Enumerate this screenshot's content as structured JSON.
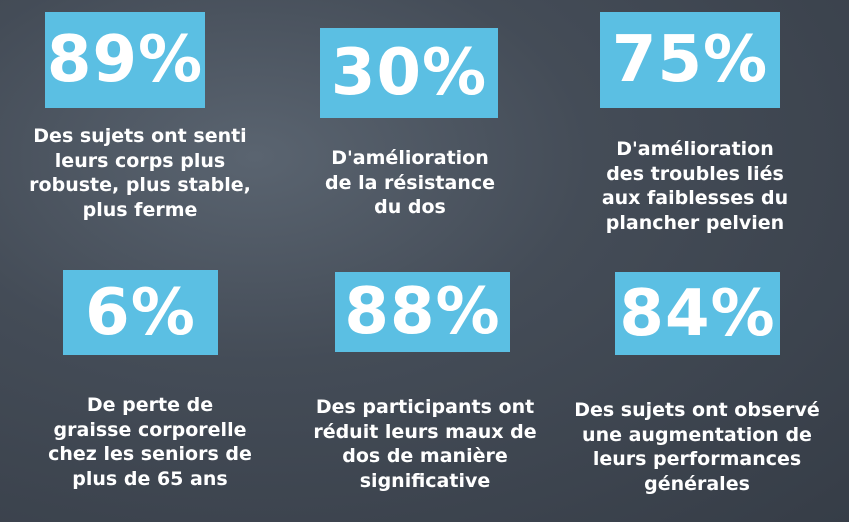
{
  "stats": [
    {
      "value": "89%",
      "lines": [
        "Des sujets ont senti",
        "leurs corps plus",
        "robuste, plus stable,",
        "plus ferme"
      ]
    },
    {
      "value": "30%",
      "lines": [
        "D'amélioration",
        "de la résistance",
        "du dos"
      ]
    },
    {
      "value": "75%",
      "lines": [
        "D'amélioration",
        "des troubles liés",
        "aux faiblesses du",
        "plancher pelvien"
      ]
    },
    {
      "value": "6%",
      "lines": [
        "De perte de",
        "graisse corporelle",
        "chez les seniors de",
        "plus de 65 ans"
      ]
    },
    {
      "value": "88%",
      "lines": [
        "Des participants ont",
        "réduit leurs maux de",
        "dos de manière",
        "significative"
      ]
    },
    {
      "value": "84%",
      "lines": [
        "Des sujets ont observé",
        "une augmentation de",
        "leurs performances",
        "générales"
      ]
    }
  ]
}
